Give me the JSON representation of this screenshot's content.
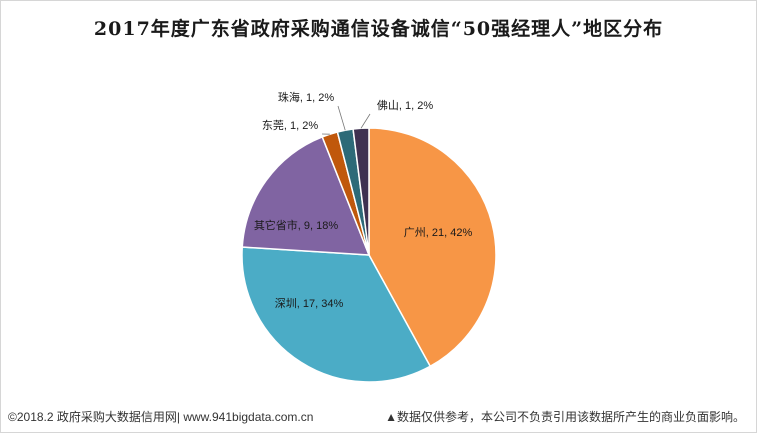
{
  "chart_data": {
    "type": "pie",
    "title": "2017年度广东省政府采购通信设备诚信“50强经理人”地区分布",
    "slices": [
      {
        "name": "广州",
        "value": 21,
        "percent": "42%",
        "color": "#F79646"
      },
      {
        "name": "深圳",
        "value": 17,
        "percent": "34%",
        "color": "#4BACC6"
      },
      {
        "name": "其它省市",
        "value": 9,
        "percent": "18%",
        "color": "#8064A2"
      },
      {
        "name": "东莞",
        "value": 1,
        "percent": "2%",
        "color": "#C0580C"
      },
      {
        "name": "珠海",
        "value": 1,
        "percent": "2%",
        "color": "#2D6A78"
      },
      {
        "name": "佛山",
        "value": 1,
        "percent": "2%",
        "color": "#3F3151"
      }
    ]
  },
  "footer": {
    "left": "©2018.2 政府采购大数据信用网| www.941bigdata.com.cn",
    "right": "▲数据仅供参考，本公司不负责引用该数据所产生的商业负面影响。"
  }
}
